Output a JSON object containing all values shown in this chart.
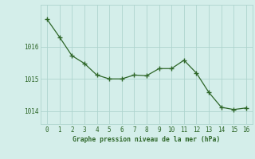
{
  "x": [
    0,
    1,
    2,
    3,
    4,
    5,
    6,
    7,
    8,
    9,
    10,
    11,
    12,
    13,
    14,
    15,
    16
  ],
  "y": [
    1016.85,
    1016.3,
    1015.72,
    1015.48,
    1015.12,
    1015.0,
    1015.0,
    1015.12,
    1015.1,
    1015.32,
    1015.32,
    1015.58,
    1015.18,
    1014.58,
    1014.12,
    1014.05,
    1014.1
  ],
  "line_color": "#2d6628",
  "marker_color": "#2d6628",
  "bg_color": "#d4eeea",
  "grid_color": "#aed4ce",
  "tick_label_color": "#2d6628",
  "xlabel": "Graphe pression niveau de la mer (hPa)",
  "xlabel_color": "#2d6628",
  "yticks": [
    1014,
    1015,
    1016
  ],
  "xticks": [
    0,
    1,
    2,
    3,
    4,
    5,
    6,
    7,
    8,
    9,
    10,
    11,
    12,
    13,
    14,
    15,
    16
  ],
  "ylim": [
    1013.6,
    1017.3
  ],
  "xlim": [
    -0.5,
    16.5
  ]
}
